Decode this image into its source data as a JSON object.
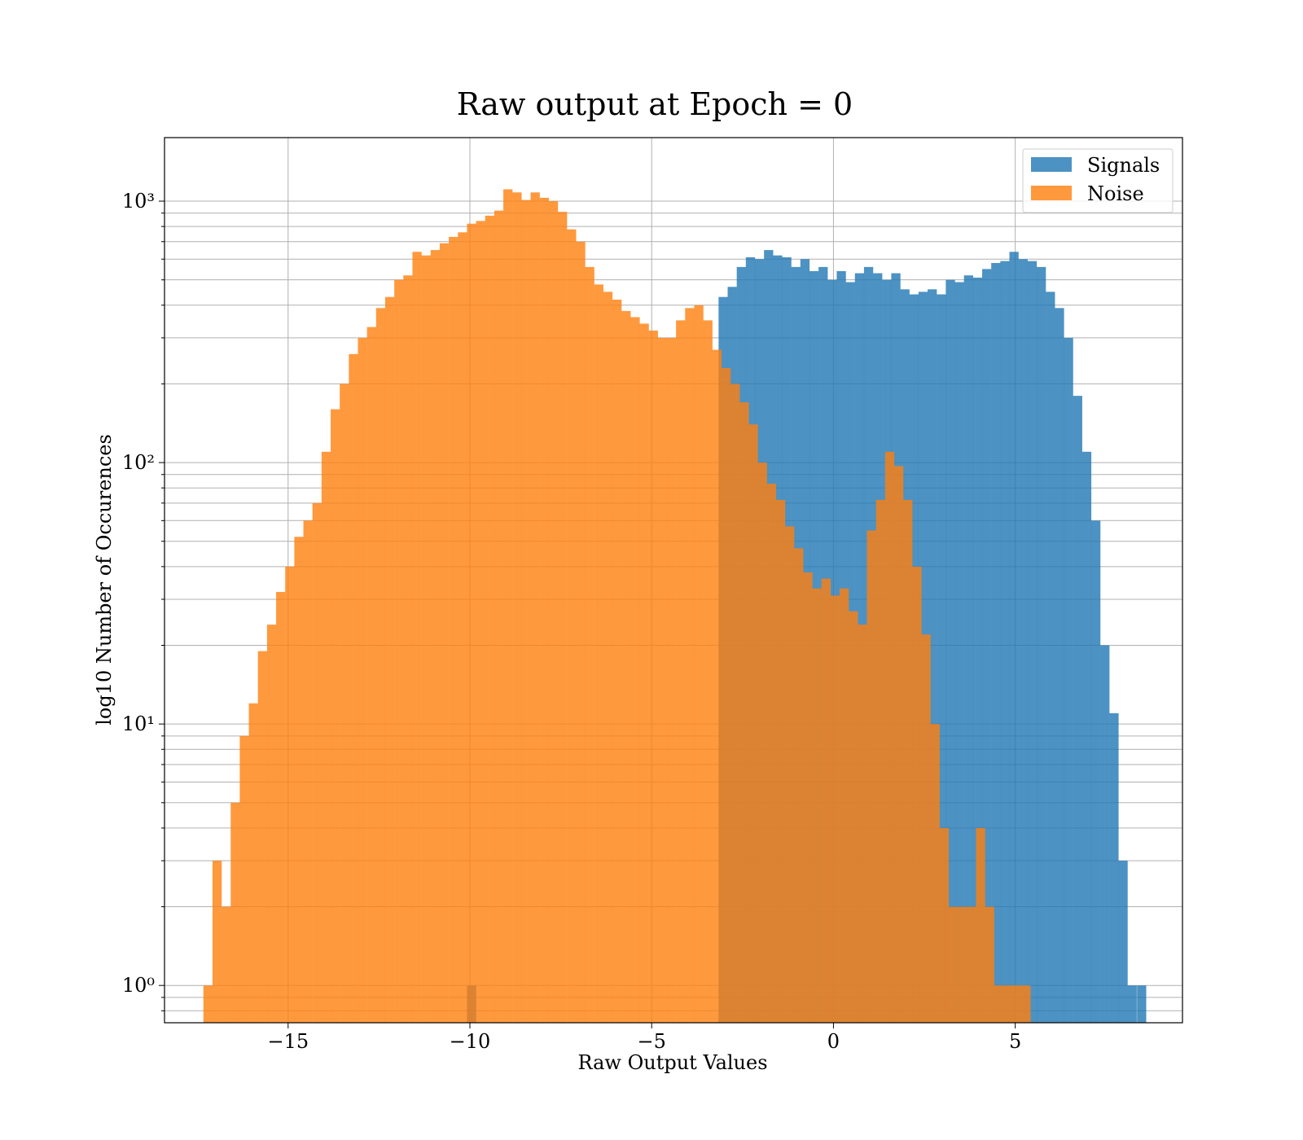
{
  "chart_data": {
    "type": "bar",
    "title": "Raw output at Epoch = 0",
    "xlabel": "Raw Output Values",
    "ylabel": "log10 Number of Occurences",
    "xlim": [
      -18.4,
      9.6
    ],
    "ylim": [
      0.72,
      1750
    ],
    "yscale": "log",
    "grid": true,
    "legend_position": "top-right",
    "x_ticks": [
      -15,
      -10,
      -5,
      0,
      5
    ],
    "x_tick_labels": [
      "−15",
      "−10",
      "−5",
      "0",
      "5"
    ],
    "y_ticks": [
      1,
      10,
      100,
      1000
    ],
    "y_tick_labels": [
      "10⁰",
      "10¹",
      "10²",
      "10³"
    ],
    "bin_width": 0.253,
    "series": [
      {
        "name": "Signals",
        "color": "#1f77b4",
        "opacity": 0.8,
        "bin_start": -10.08,
        "counts": [
          1,
          0,
          0,
          0,
          0,
          0,
          0,
          0,
          0,
          0,
          0,
          0,
          0,
          0,
          0,
          0,
          0,
          0,
          0,
          0,
          0,
          0,
          0,
          0,
          0,
          0,
          0,
          0,
          0,
          0,
          0,
          0,
          0,
          0,
          0,
          0,
          0,
          0,
          0,
          0,
          0,
          0,
          0,
          0,
          0,
          0,
          0,
          0,
          0,
          0,
          0,
          0,
          0,
          0,
          0,
          0,
          0,
          0,
          0,
          0,
          0,
          0,
          0,
          0,
          0,
          0,
          0,
          0,
          0,
          0,
          0,
          0,
          0,
          0,
          0,
          0,
          0,
          0,
          0,
          0,
          0,
          0,
          0,
          0,
          0,
          0,
          0,
          0,
          0,
          0,
          0,
          0,
          0,
          0,
          0,
          0,
          0,
          0,
          0,
          0,
          0,
          0,
          0,
          1
        ],
        "bins": [
          {
            "x": -10.08,
            "count": 1
          }
        ],
        "bars": [
          [
            -3.16,
            430
          ],
          [
            -2.91,
            470
          ],
          [
            -2.66,
            560
          ],
          [
            -2.41,
            610
          ],
          [
            -2.16,
            600
          ],
          [
            -1.91,
            650
          ],
          [
            -1.66,
            620
          ],
          [
            -1.41,
            610
          ],
          [
            -1.16,
            560
          ],
          [
            -0.91,
            600
          ],
          [
            -0.66,
            540
          ],
          [
            -0.41,
            560
          ],
          [
            -0.16,
            500
          ],
          [
            0.09,
            540
          ],
          [
            0.34,
            490
          ],
          [
            0.59,
            530
          ],
          [
            0.84,
            560
          ],
          [
            1.09,
            530
          ],
          [
            1.34,
            500
          ],
          [
            1.59,
            530
          ],
          [
            1.84,
            460
          ],
          [
            2.09,
            440
          ],
          [
            2.34,
            450
          ],
          [
            2.59,
            460
          ],
          [
            2.84,
            440
          ],
          [
            3.09,
            500
          ],
          [
            3.34,
            490
          ],
          [
            3.59,
            520
          ],
          [
            3.84,
            510
          ],
          [
            4.09,
            550
          ],
          [
            4.34,
            580
          ],
          [
            4.59,
            590
          ],
          [
            4.84,
            640
          ],
          [
            5.09,
            600
          ],
          [
            5.34,
            590
          ],
          [
            5.59,
            560
          ],
          [
            5.84,
            450
          ],
          [
            6.09,
            390
          ],
          [
            6.34,
            300
          ],
          [
            6.59,
            180
          ],
          [
            6.84,
            110
          ],
          [
            7.09,
            60
          ],
          [
            7.34,
            20
          ],
          [
            7.59,
            11
          ],
          [
            7.84,
            3
          ],
          [
            8.09,
            1
          ]
        ],
        "extra_bars": [
          [
            8.35,
            1
          ]
        ]
      },
      {
        "name": "Noise",
        "color": "#ff7f0e",
        "opacity": 0.8,
        "bars": [
          [
            -17.33,
            1
          ],
          [
            -17.08,
            3
          ],
          [
            -16.83,
            2
          ],
          [
            -16.58,
            5
          ],
          [
            -16.33,
            9
          ],
          [
            -16.08,
            12
          ],
          [
            -15.83,
            19
          ],
          [
            -15.58,
            24
          ],
          [
            -15.33,
            32
          ],
          [
            -15.08,
            40
          ],
          [
            -14.83,
            52
          ],
          [
            -14.58,
            60
          ],
          [
            -14.33,
            70
          ],
          [
            -14.08,
            110
          ],
          [
            -13.83,
            160
          ],
          [
            -13.58,
            200
          ],
          [
            -13.33,
            260
          ],
          [
            -13.08,
            300
          ],
          [
            -12.83,
            330
          ],
          [
            -12.58,
            390
          ],
          [
            -12.33,
            430
          ],
          [
            -12.08,
            500
          ],
          [
            -11.83,
            520
          ],
          [
            -11.58,
            640
          ],
          [
            -11.33,
            620
          ],
          [
            -11.08,
            650
          ],
          [
            -10.83,
            690
          ],
          [
            -10.58,
            730
          ],
          [
            -10.33,
            760
          ],
          [
            -10.08,
            820
          ],
          [
            -9.83,
            840
          ],
          [
            -9.58,
            880
          ],
          [
            -9.33,
            920
          ],
          [
            -9.08,
            1110
          ],
          [
            -8.83,
            1080
          ],
          [
            -8.58,
            1010
          ],
          [
            -8.33,
            1080
          ],
          [
            -8.08,
            1030
          ],
          [
            -7.83,
            1000
          ],
          [
            -7.58,
            910
          ],
          [
            -7.33,
            780
          ],
          [
            -7.08,
            700
          ],
          [
            -6.83,
            560
          ],
          [
            -6.58,
            480
          ],
          [
            -6.33,
            450
          ],
          [
            -6.08,
            420
          ],
          [
            -5.83,
            380
          ],
          [
            -5.58,
            360
          ],
          [
            -5.33,
            340
          ],
          [
            -5.08,
            320
          ],
          [
            -4.83,
            300
          ],
          [
            -4.58,
            300
          ],
          [
            -4.33,
            350
          ],
          [
            -4.08,
            390
          ],
          [
            -3.83,
            400
          ],
          [
            -3.58,
            350
          ],
          [
            -3.33,
            270
          ],
          [
            -3.08,
            230
          ],
          [
            -2.83,
            200
          ],
          [
            -2.58,
            170
          ],
          [
            -2.33,
            140
          ],
          [
            -2.08,
            100
          ],
          [
            -1.83,
            83
          ],
          [
            -1.58,
            72
          ],
          [
            -1.33,
            57
          ],
          [
            -1.08,
            47
          ],
          [
            -0.83,
            38
          ],
          [
            -0.58,
            33
          ],
          [
            -0.33,
            36
          ],
          [
            -0.08,
            31
          ],
          [
            0.17,
            33
          ],
          [
            0.42,
            27
          ],
          [
            0.67,
            24
          ],
          [
            0.92,
            55
          ],
          [
            1.17,
            72
          ],
          [
            1.42,
            110
          ],
          [
            1.67,
            97
          ],
          [
            1.92,
            72
          ],
          [
            2.17,
            40
          ],
          [
            2.42,
            22
          ],
          [
            2.67,
            10
          ],
          [
            2.92,
            4
          ],
          [
            3.17,
            2
          ],
          [
            3.42,
            2
          ],
          [
            3.67,
            2
          ],
          [
            3.92,
            4
          ],
          [
            4.17,
            2
          ],
          [
            4.42,
            1
          ],
          [
            4.67,
            1
          ],
          [
            4.92,
            1
          ],
          [
            5.17,
            1
          ]
        ]
      }
    ]
  }
}
